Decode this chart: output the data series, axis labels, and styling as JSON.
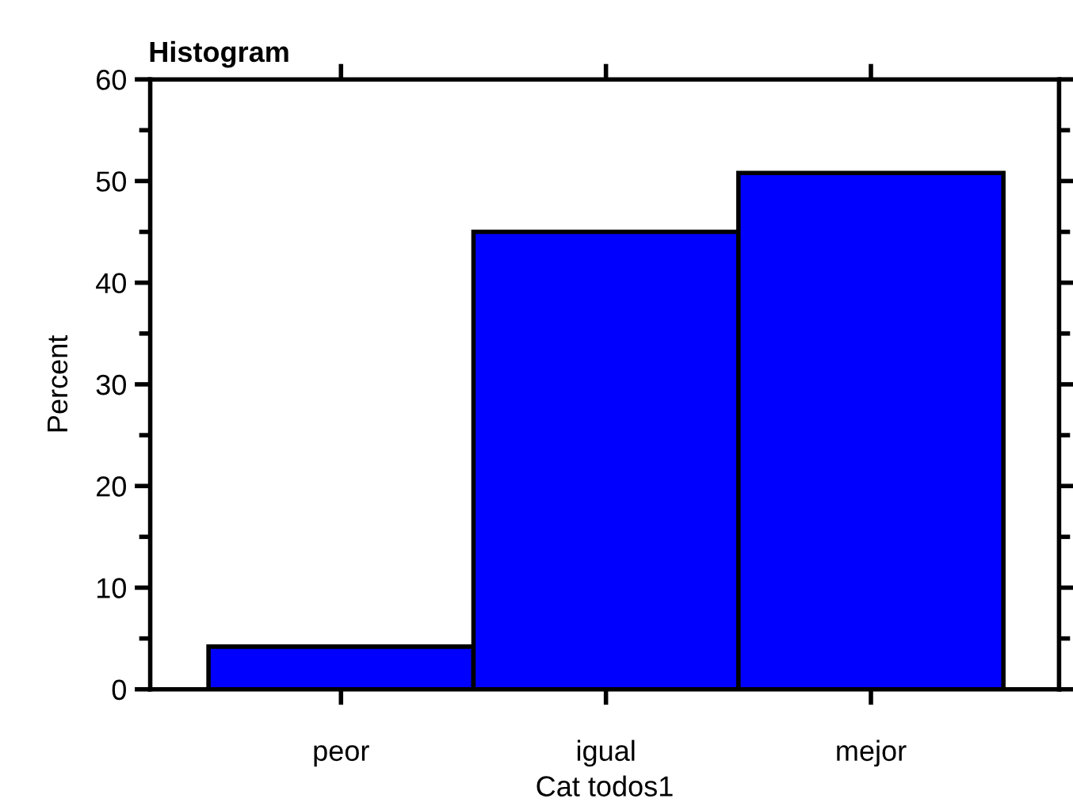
{
  "chart_data": {
    "type": "bar",
    "title": "Histogram",
    "xlabel": "Cat todos1",
    "ylabel": "Percent",
    "categories": [
      "peor",
      "igual",
      "mejor"
    ],
    "values": [
      4.2,
      45.0,
      50.8
    ],
    "color": "#0000ff",
    "ylim": [
      0,
      60
    ],
    "yticks": [
      0,
      {
        "value": 5,
        "label": null
      },
      10,
      {
        "value": 15,
        "label": null
      },
      20,
      {
        "value": 25,
        "label": null
      },
      30,
      {
        "value": 35,
        "label": null
      },
      40,
      {
        "value": 45,
        "label": null
      },
      50,
      {
        "value": 55,
        "label": null
      },
      60
    ],
    "grid": false,
    "legend": false
  }
}
